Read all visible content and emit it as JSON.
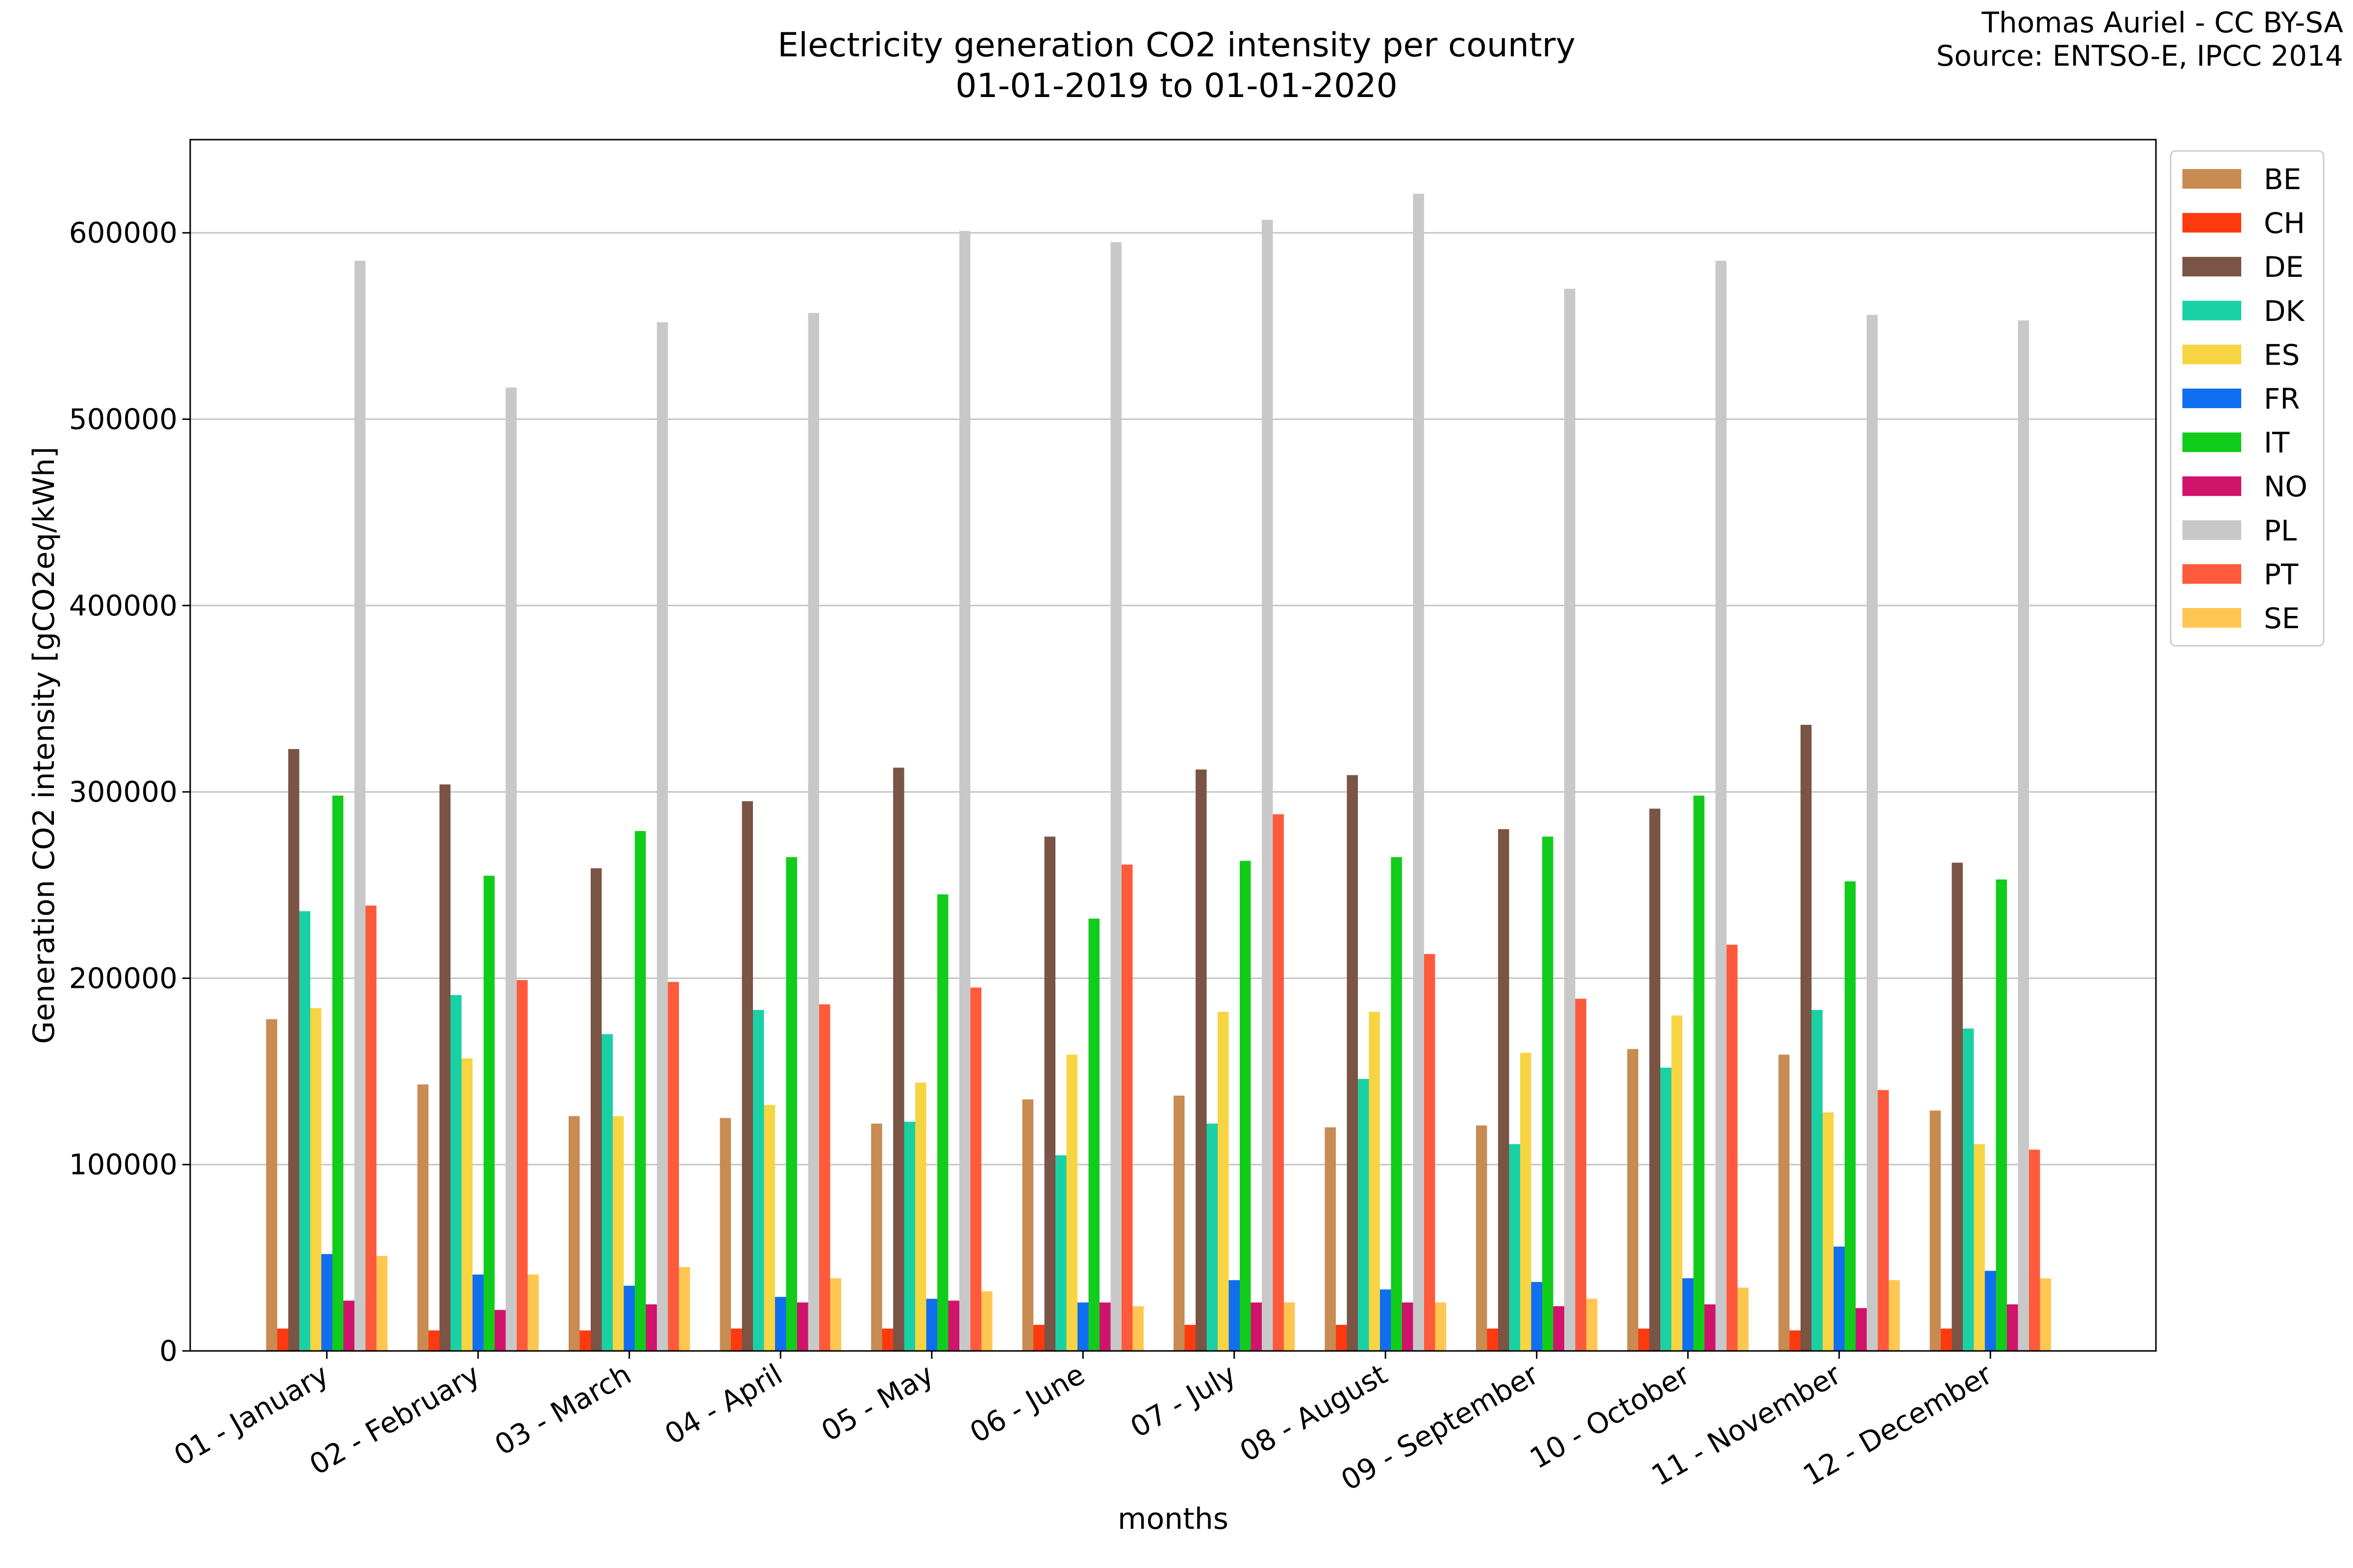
{
  "chart_data": {
    "type": "bar",
    "title": [
      "Electricity generation CO2 intensity per country",
      "01-01-2019 to 01-01-2020"
    ],
    "credit": [
      "Thomas Auriel - CC BY-SA",
      "Source: ENTSO-E, IPCC 2014"
    ],
    "xlabel": "months",
    "ylabel": "Generation CO2 intensity [gCO2eq/kWh]",
    "ylim": [
      0,
      650000
    ],
    "yticks": [
      0,
      100000,
      200000,
      300000,
      400000,
      500000,
      600000
    ],
    "ytick_labels": [
      "0",
      "100000",
      "200000",
      "300000",
      "400000",
      "500000",
      "600000"
    ],
    "grid": "horizontal",
    "legend_position": "top-right outside",
    "categories": [
      "01 - January",
      "02 - February",
      "03 - March",
      "04 - April",
      "05 - May",
      "06 - June",
      "07 - July",
      "08 - August",
      "09 - September",
      "10 - October",
      "11 - November",
      "12 - December"
    ],
    "series": [
      {
        "name": "BE",
        "color": "#c88b52",
        "values": [
          178000,
          143000,
          126000,
          125000,
          122000,
          135000,
          137000,
          120000,
          121000,
          162000,
          159000,
          129000
        ]
      },
      {
        "name": "CH",
        "color": "#ff3a0f",
        "values": [
          12000,
          11000,
          11000,
          12000,
          12000,
          14000,
          14000,
          14000,
          12000,
          12000,
          11000,
          12000
        ]
      },
      {
        "name": "DE",
        "color": "#7a5445",
        "values": [
          323000,
          304000,
          259000,
          295000,
          313000,
          276000,
          312000,
          309000,
          280000,
          291000,
          336000,
          262000
        ]
      },
      {
        "name": "DK",
        "color": "#1ad1a6",
        "values": [
          236000,
          191000,
          170000,
          183000,
          123000,
          105000,
          122000,
          146000,
          111000,
          152000,
          183000,
          173000
        ]
      },
      {
        "name": "ES",
        "color": "#f7d442",
        "values": [
          184000,
          157000,
          126000,
          132000,
          144000,
          159000,
          182000,
          182000,
          160000,
          180000,
          128000,
          111000
        ]
      },
      {
        "name": "FR",
        "color": "#0f6ff0",
        "values": [
          52000,
          41000,
          35000,
          29000,
          28000,
          26000,
          38000,
          33000,
          37000,
          39000,
          56000,
          43000
        ]
      },
      {
        "name": "IT",
        "color": "#12cc1c",
        "values": [
          298000,
          255000,
          279000,
          265000,
          245000,
          232000,
          263000,
          265000,
          276000,
          298000,
          252000,
          253000
        ]
      },
      {
        "name": "NO",
        "color": "#d0146c",
        "values": [
          27000,
          22000,
          25000,
          26000,
          27000,
          26000,
          26000,
          26000,
          24000,
          25000,
          23000,
          25000
        ]
      },
      {
        "name": "PL",
        "color": "#c8c8c8",
        "values": [
          585000,
          517000,
          552000,
          557000,
          601000,
          595000,
          607000,
          621000,
          570000,
          585000,
          556000,
          553000
        ]
      },
      {
        "name": "PT",
        "color": "#ff5a3c",
        "values": [
          239000,
          199000,
          198000,
          186000,
          195000,
          261000,
          288000,
          213000,
          189000,
          218000,
          140000,
          108000
        ]
      },
      {
        "name": "SE",
        "color": "#ffc651",
        "values": [
          51000,
          41000,
          45000,
          39000,
          32000,
          24000,
          26000,
          26000,
          28000,
          34000,
          38000,
          39000
        ]
      }
    ]
  }
}
